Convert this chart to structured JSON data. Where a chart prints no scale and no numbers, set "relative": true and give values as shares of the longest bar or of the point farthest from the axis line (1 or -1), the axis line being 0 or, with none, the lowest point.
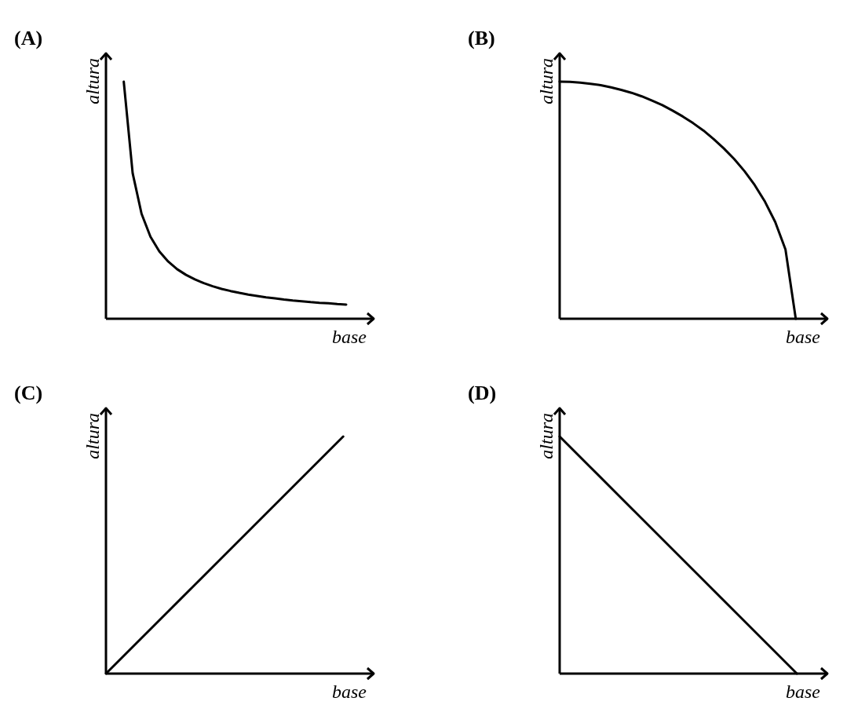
{
  "chart_data": [
    {
      "type": "line",
      "title": "(A)",
      "xlabel": "base",
      "ylabel": "altura",
      "relative": true,
      "color": "#000000",
      "categories": [
        null,
        null,
        null,
        null,
        null,
        null,
        null,
        null,
        null,
        null,
        null,
        null,
        null,
        null,
        null,
        null,
        null,
        null,
        null,
        null,
        null,
        null,
        null,
        null,
        null,
        null,
        null,
        null,
        null,
        null,
        null
      ],
      "values": [
        null,
        null,
        1,
        0.614,
        0.443,
        0.346,
        0.284,
        0.241,
        0.209,
        0.185,
        0.166,
        0.15,
        0.137,
        0.126,
        0.117,
        0.109,
        0.102,
        0.096,
        0.09,
        0.086,
        0.081,
        0.077,
        0.074,
        0.07,
        0.067,
        0.065,
        0.062,
        0.06,
        null,
        null,
        null
      ]
    },
    {
      "type": "line",
      "title": "(B)",
      "xlabel": "base",
      "ylabel": "altura",
      "relative": true,
      "color": "#000000",
      "categories": [
        null,
        null,
        null,
        null,
        null,
        null,
        null,
        null,
        null,
        null,
        null,
        null,
        null,
        null,
        null,
        null,
        null,
        null,
        null,
        null,
        null,
        null,
        null,
        null,
        null,
        null,
        null
      ],
      "values": [
        1,
        0.999,
        0.996,
        0.991,
        0.985,
        0.976,
        0.965,
        0.953,
        0.938,
        0.92,
        0.901,
        0.878,
        0.853,
        0.825,
        0.794,
        0.758,
        0.718,
        0.674,
        0.623,
        0.564,
        0.494,
        0.408,
        0.292,
        0,
        null,
        null,
        null
      ]
    },
    {
      "type": "line",
      "title": "(C)",
      "xlabel": "base",
      "ylabel": "altura",
      "relative": true,
      "color": "#000000",
      "categories": [
        null,
        null,
        null,
        null,
        null,
        null,
        null,
        null,
        null,
        null
      ],
      "values": [
        0,
        0.125,
        0.25,
        0.375,
        0.5,
        0.625,
        0.75,
        0.875,
        1,
        null
      ]
    },
    {
      "type": "line",
      "title": "(D)",
      "xlabel": "base",
      "ylabel": "altura",
      "relative": true,
      "color": "#000000",
      "categories": [
        null,
        null,
        null,
        null,
        null,
        null,
        null,
        null,
        null,
        null
      ],
      "values": [
        1,
        0.875,
        0.75,
        0.625,
        0.5,
        0.375,
        0.25,
        0.125,
        0,
        null
      ]
    }
  ]
}
